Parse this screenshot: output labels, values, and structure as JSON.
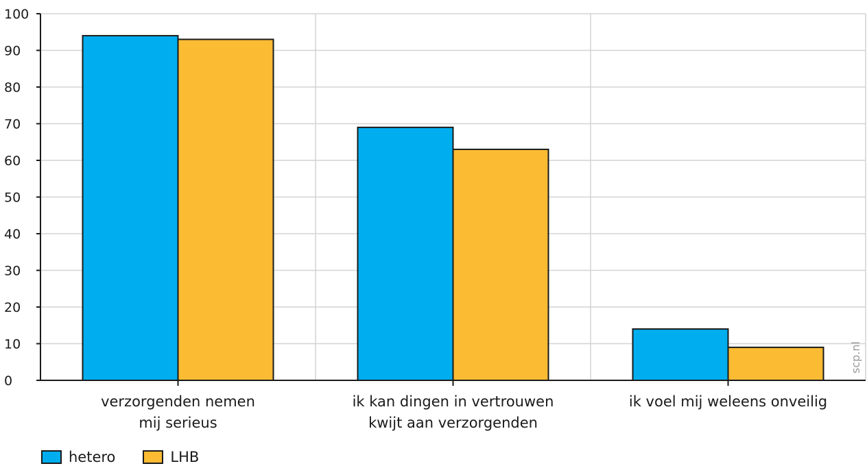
{
  "chart_data": {
    "type": "bar",
    "categories": [
      [
        "verzorgenden nemen",
        "mij serieus"
      ],
      [
        "ik kan dingen in vertrouwen",
        "kwijt aan verzorgenden"
      ],
      [
        "ik voel mij weleens onveilig"
      ]
    ],
    "series": [
      {
        "name": "hetero",
        "color": "#00aeef",
        "values": [
          94,
          69,
          14
        ]
      },
      {
        "name": "LHB",
        "color": "#fbbb33",
        "values": [
          93,
          63,
          9
        ]
      }
    ],
    "ylim": [
      0,
      100
    ],
    "yticks": [
      0,
      10,
      20,
      30,
      40,
      50,
      60,
      70,
      80,
      90,
      100
    ],
    "grid": true,
    "legend_position": "bottom-left",
    "watermark": "scp.nl"
  }
}
